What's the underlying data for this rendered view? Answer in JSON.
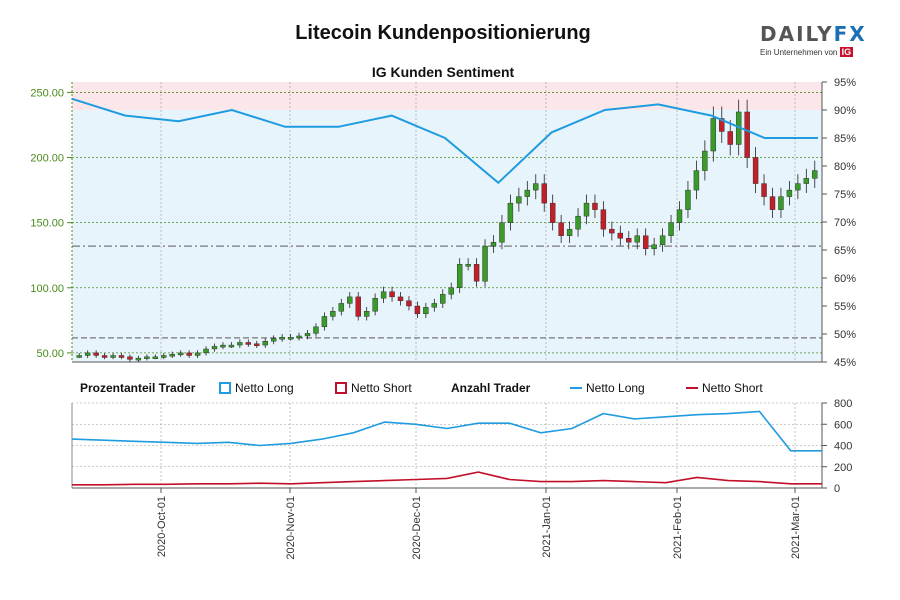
{
  "title": "Litecoin Kundenpositionierung",
  "logo": {
    "wordmark": "DAILYFX",
    "wordmark_plain": "DAILY",
    "wordmark_accent": "FX",
    "sub": "Ein Unternehmen von",
    "sub_badge": "IG"
  },
  "colors": {
    "long": "#1f9be0",
    "short": "#c0102a",
    "up": "#3a9a2a",
    "down": "#c0202a",
    "bg_long": "#e8f4fb",
    "bg_short": "#fbe7ea",
    "axis_green": "#4a8c1c"
  },
  "chart_data": [
    {
      "type": "candlestick",
      "title": "IG Kunden Sentiment",
      "left_axis": {
        "ticks": [
          "50.00",
          "100.00",
          "150.00",
          "200.00",
          "250.00"
        ],
        "ylim": [
          43,
          258
        ]
      },
      "right_axis": {
        "ticks": [
          "45%",
          "50%",
          "55%",
          "60%",
          "65%",
          "70%",
          "75%",
          "80%",
          "85%",
          "90%",
          "95%"
        ],
        "ylim": [
          45,
          95
        ]
      },
      "reference_lines": [
        {
          "value": 61.5,
          "style": "dash"
        },
        {
          "value": 132,
          "style": "dashdot"
        }
      ],
      "price_close": [
        48,
        50,
        48,
        47,
        48,
        47,
        45,
        46,
        47,
        47,
        48,
        49,
        50,
        48,
        50,
        53,
        55,
        56,
        56,
        58,
        57,
        56,
        59,
        61,
        62,
        62,
        63,
        65,
        70,
        78,
        82,
        88,
        93,
        78,
        82,
        92,
        97,
        93,
        90,
        86,
        80,
        85,
        88,
        95,
        100,
        118,
        118,
        105,
        132,
        135,
        150,
        165,
        170,
        175,
        180,
        165,
        150,
        140,
        145,
        155,
        165,
        160,
        145,
        142,
        138,
        135,
        140,
        130,
        133,
        140,
        150,
        160,
        175,
        190,
        205,
        230,
        220,
        210,
        235,
        200,
        180,
        170,
        160,
        170,
        175,
        180,
        184,
        190
      ]
    },
    {
      "type": "line",
      "title": "Prozentanteil Trader",
      "legend": [
        "Netto Long",
        "Netto Short"
      ],
      "ylim": [
        45,
        95
      ],
      "series": [
        {
          "name": "Netto Long",
          "x": [
            "2020-09-01",
            "2020-09-15",
            "2020-10-01",
            "2020-10-15",
            "2020-11-01",
            "2020-11-15",
            "2020-12-01",
            "2020-12-15",
            "2020-12-26",
            "2021-01-01",
            "2021-01-15",
            "2021-02-01",
            "2021-02-15",
            "2021-03-01",
            "2021-03-08"
          ],
          "values": [
            92,
            89,
            88,
            90,
            87,
            87,
            89,
            85,
            77,
            86,
            90,
            91,
            89,
            85,
            85
          ]
        }
      ]
    },
    {
      "type": "line",
      "title": "Anzahl Trader",
      "legend": [
        "Netto Long",
        "Netto Short"
      ],
      "y_ticks": [
        "0",
        "200",
        "400",
        "600",
        "800"
      ],
      "ylim": [
        0,
        800
      ],
      "x_ticks": [
        "2020-Oct-01",
        "2020-Nov-01",
        "2020-Dec-01",
        "2021-Jan-01",
        "2021-Feb-01",
        "2021-Mar-01"
      ],
      "series": [
        {
          "name": "Netto Long",
          "values": [
            460,
            450,
            440,
            430,
            420,
            430,
            400,
            420,
            460,
            520,
            620,
            600,
            560,
            610,
            610,
            520,
            560,
            700,
            650,
            670,
            690,
            700,
            720,
            350,
            350
          ]
        },
        {
          "name": "Netto Short",
          "values": [
            30,
            30,
            35,
            35,
            40,
            40,
            45,
            40,
            50,
            60,
            70,
            80,
            90,
            150,
            80,
            60,
            60,
            70,
            60,
            50,
            100,
            70,
            60,
            40,
            40
          ]
        }
      ]
    }
  ]
}
